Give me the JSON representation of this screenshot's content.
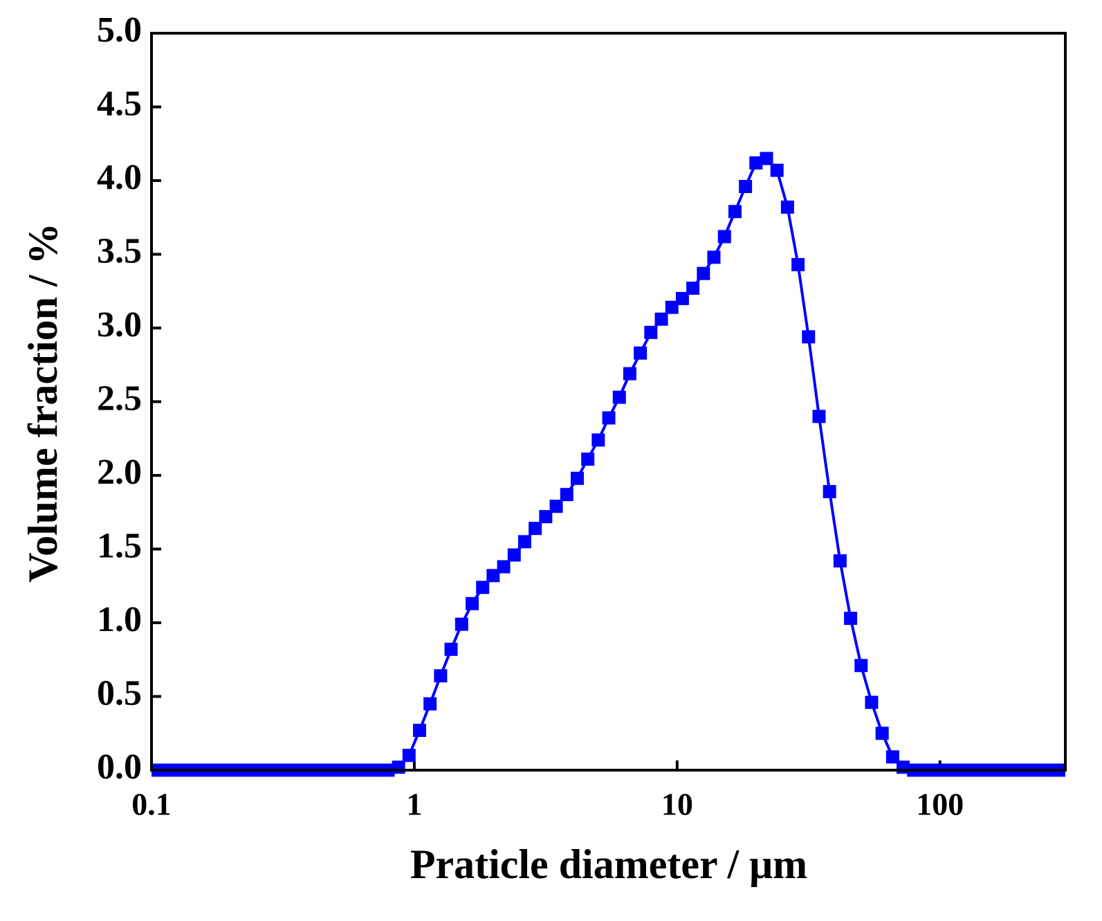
{
  "chart_data": {
    "type": "line",
    "xlabel": "Praticle diameter / μm",
    "ylabel": "Volume fraction / %",
    "x_scale": "log",
    "xlim": [
      0.1,
      300
    ],
    "xticks": [
      0.1,
      1,
      10,
      100
    ],
    "ylim": [
      0,
      5
    ],
    "yticks": [
      {
        "value": 0,
        "label": "0.0"
      },
      {
        "value": 0.5,
        "label": "0.5"
      },
      {
        "value": 1,
        "label": "1.0"
      },
      {
        "value": 1.5,
        "label": "1.5"
      },
      {
        "value": 2,
        "label": "2.0"
      },
      {
        "value": 2.5,
        "label": "2.5"
      },
      {
        "value": 3,
        "label": "3.0"
      },
      {
        "value": 3.5,
        "label": "3.5"
      },
      {
        "value": 4,
        "label": "4.0"
      },
      {
        "value": 4.5,
        "label": "4.5"
      },
      {
        "value": 5,
        "label": "5.0"
      }
    ],
    "marker": "square",
    "series": [
      {
        "color": "#0000ff",
        "x": [
          0.1047,
          0.1148,
          0.1259,
          0.138,
          0.1514,
          0.166,
          0.182,
          0.1995,
          0.2188,
          0.2399,
          0.263,
          0.2884,
          0.3162,
          0.3467,
          0.3802,
          0.4169,
          0.4571,
          0.5012,
          0.5495,
          0.6026,
          0.6607,
          0.7244,
          0.7943,
          0.871,
          0.955,
          1.047,
          1.148,
          1.259,
          1.38,
          1.514,
          1.66,
          1.82,
          1.995,
          2.188,
          2.399,
          2.63,
          2.884,
          3.162,
          3.467,
          3.802,
          4.169,
          4.571,
          5.012,
          5.495,
          6.026,
          6.607,
          7.244,
          7.943,
          8.71,
          9.55,
          10.47,
          11.48,
          12.59,
          13.8,
          15.14,
          16.6,
          18.2,
          19.95,
          21.88,
          23.99,
          26.3,
          28.84,
          31.62,
          34.67,
          38.02,
          41.69,
          45.71,
          50.12,
          54.95,
          60.26,
          66.07,
          72.44,
          79.43,
          87.1,
          95.5,
          104.7,
          114.8,
          125.9,
          138,
          151.4,
          166,
          182,
          199.5,
          218.8,
          239.9,
          263,
          288.4
        ],
        "values": [
          0,
          0,
          0,
          0,
          0,
          0,
          0,
          0,
          0,
          0,
          0,
          0,
          0,
          0,
          0,
          0,
          0,
          0,
          0,
          0,
          0,
          0,
          0,
          0.02,
          0.1,
          0.27,
          0.45,
          0.64,
          0.82,
          0.99,
          1.13,
          1.24,
          1.32,
          1.38,
          1.46,
          1.55,
          1.64,
          1.72,
          1.79,
          1.87,
          1.98,
          2.11,
          2.24,
          2.39,
          2.53,
          2.69,
          2.83,
          2.97,
          3.06,
          3.14,
          3.2,
          3.27,
          3.37,
          3.48,
          3.62,
          3.79,
          3.96,
          4.12,
          4.15,
          4.07,
          3.82,
          3.43,
          2.94,
          2.4,
          1.89,
          1.42,
          1.03,
          0.71,
          0.46,
          0.25,
          0.09,
          0.02,
          0,
          0,
          0,
          0,
          0,
          0,
          0,
          0,
          0,
          0,
          0,
          0,
          0,
          0,
          0
        ]
      }
    ]
  }
}
